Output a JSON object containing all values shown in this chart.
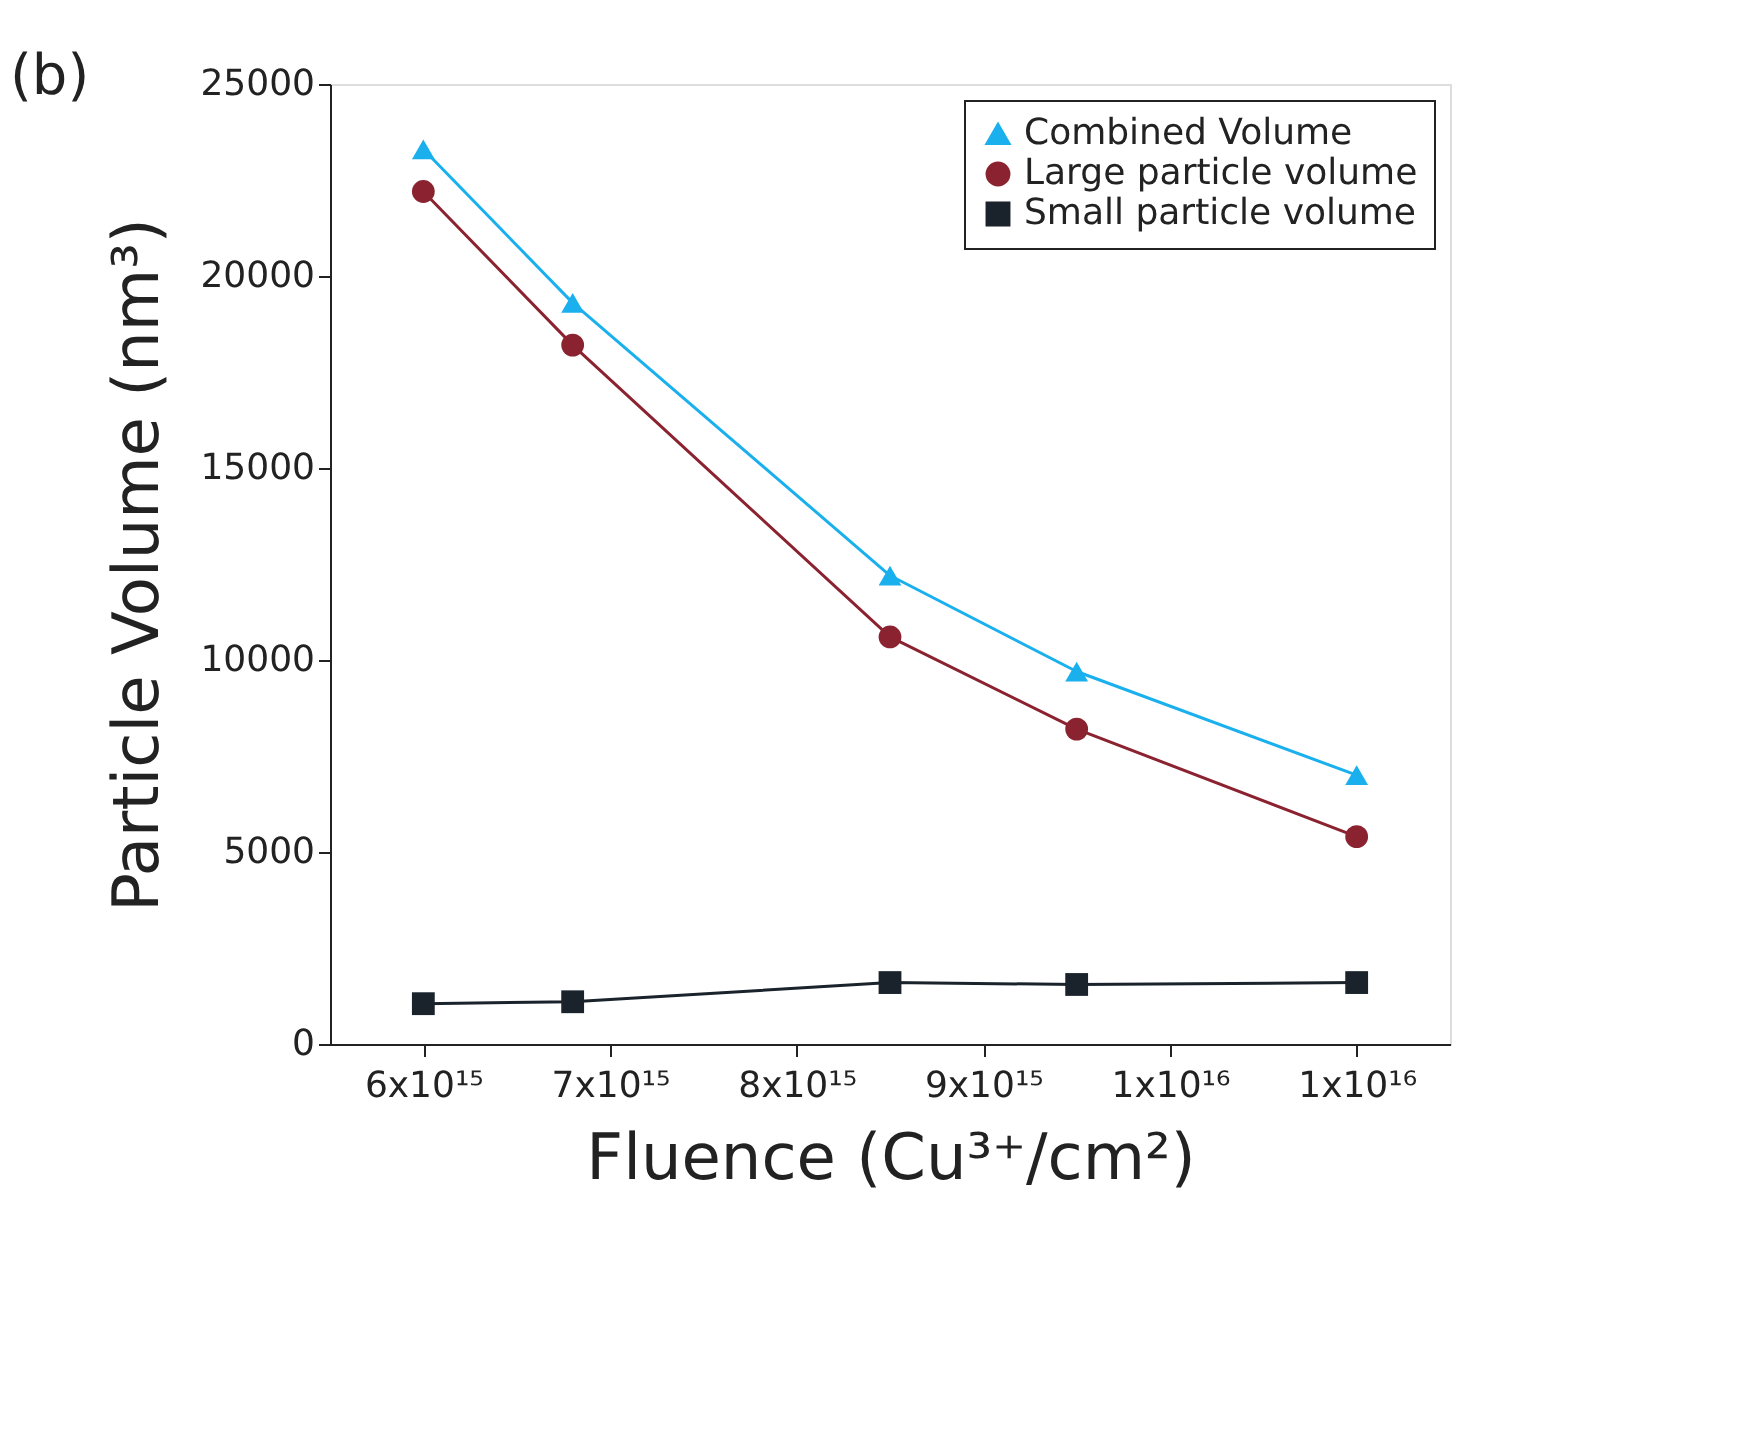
{
  "chart_data": {
    "type": "line",
    "title": "(b)",
    "xlabel": "Fluence (Cu³⁺/cm²)",
    "ylabel": "Particle Volume (nm³)",
    "xlim": [
      5500000000000000.0,
      1.15e+16
    ],
    "ylim": [
      0,
      25000
    ],
    "xticks": [
      {
        "value": 6000000000000000.0,
        "label": "6x10¹⁵"
      },
      {
        "value": 7000000000000000.0,
        "label": "7x10¹⁵"
      },
      {
        "value": 8000000000000000.0,
        "label": "8x10¹⁵"
      },
      {
        "value": 9000000000000000.0,
        "label": "9x10¹⁵"
      },
      {
        "value": 1e+16,
        "label": "1x10¹⁶"
      },
      {
        "value": 1.1e+16,
        "label": "1x10¹⁶"
      }
    ],
    "yticks": [
      0,
      5000,
      10000,
      15000,
      20000,
      25000
    ],
    "x": [
      6000000000000000.0,
      6800000000000000.0,
      8500000000000000.0,
      9500000000000000.0,
      1.1e+16
    ],
    "grid": false,
    "legend": "top right",
    "line_style": "solid",
    "series": [
      {
        "name": "Combined Volume",
        "color": "#1ab0ee",
        "marker": "triangle",
        "values": [
          23300,
          19300,
          12200,
          9700,
          7000
        ]
      },
      {
        "name": "Large particle volume",
        "color": "#8b2230",
        "marker": "circle",
        "values": [
          22200,
          18200,
          10600,
          8200,
          5400
        ]
      },
      {
        "name": "Small particle volume",
        "color": "#1a222c",
        "marker": "square",
        "values": [
          1050,
          1100,
          1600,
          1550,
          1600
        ]
      }
    ]
  }
}
